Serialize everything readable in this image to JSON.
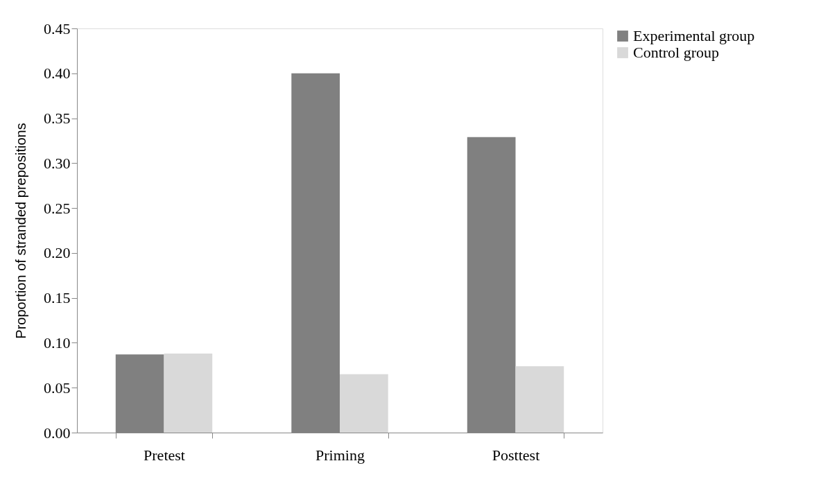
{
  "chart_data": {
    "type": "bar",
    "ylabel": "Proportion of stranded prepositions",
    "categories": [
      "Pretest",
      "Priming",
      "Posttest"
    ],
    "series": [
      {
        "name": "Experimental group",
        "color": "#808080",
        "values": [
          0.087,
          0.4,
          0.329
        ]
      },
      {
        "name": "Control group",
        "color": "#d9d9d9",
        "values": [
          0.088,
          0.065,
          0.074
        ]
      }
    ],
    "ylim": [
      0,
      0.45
    ],
    "yticks": [
      {
        "value": 0,
        "label": "0.00"
      },
      {
        "value": 0.05,
        "label": "0.05"
      },
      {
        "value": 0.1,
        "label": "0.10"
      },
      {
        "value": 0.15,
        "label": "0.15"
      },
      {
        "value": 0.2,
        "label": "0.20"
      },
      {
        "value": 0.25,
        "label": "0.25"
      },
      {
        "value": 0.3,
        "label": "0.30"
      },
      {
        "value": 0.35,
        "label": "0.35"
      },
      {
        "value": 0.4,
        "label": "0.40"
      },
      {
        "value": 0.45,
        "label": "0.45"
      }
    ],
    "grid": false,
    "legend": "right"
  }
}
